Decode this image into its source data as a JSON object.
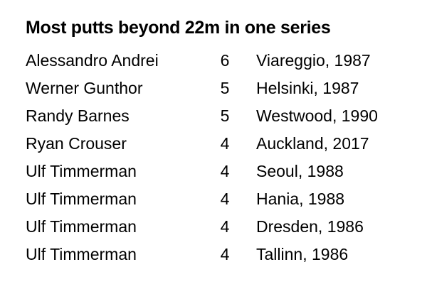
{
  "title": "Most putts beyond 22m in one series",
  "table": {
    "rows": [
      [
        "Alessandro Andrei",
        6,
        "Viareggio, 1987"
      ],
      [
        "Werner Gunthor",
        5,
        "Helsinki, 1987"
      ],
      [
        "Randy Barnes",
        5,
        "Westwood, 1990"
      ],
      [
        "Ryan Crouser",
        4,
        "Auckland, 2017"
      ],
      [
        "Ulf Timmerman",
        4,
        "Seoul, 1988"
      ],
      [
        "Ulf Timmerman",
        4,
        "Hania, 1988"
      ],
      [
        "Ulf Timmerman",
        4,
        "Dresden, 1986"
      ],
      [
        "Ulf Timmerman",
        4,
        "Tallinn, 1986"
      ]
    ]
  }
}
